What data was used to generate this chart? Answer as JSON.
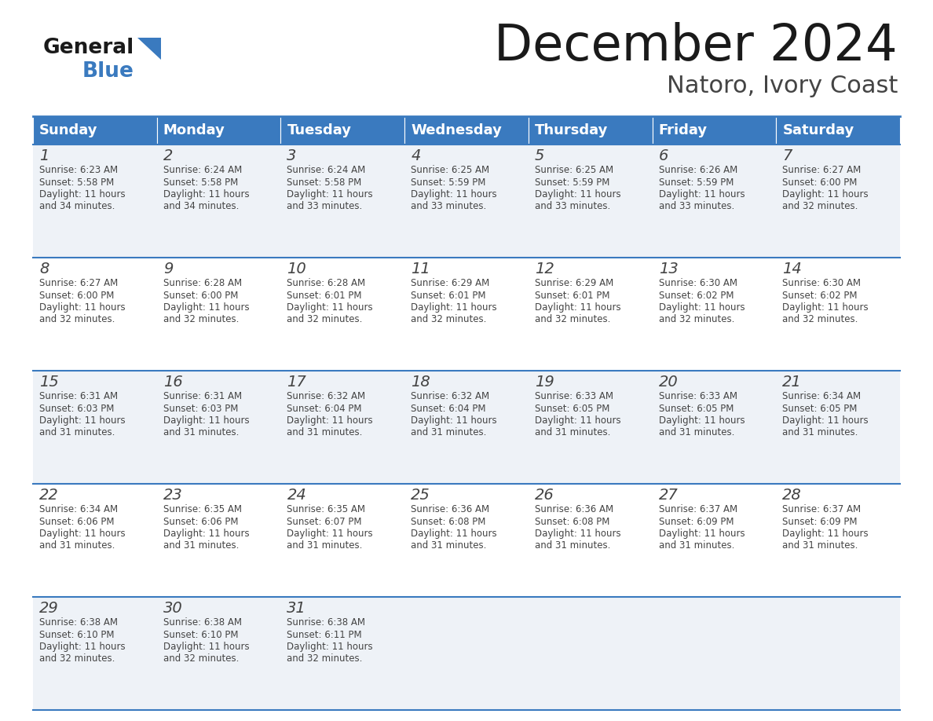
{
  "title": "December 2024",
  "subtitle": "Natoro, Ivory Coast",
  "header_color": "#3a7abf",
  "header_text_color": "#ffffff",
  "days_of_week": [
    "Sunday",
    "Monday",
    "Tuesday",
    "Wednesday",
    "Thursday",
    "Friday",
    "Saturday"
  ],
  "row_bg_colors": [
    "#eef2f7",
    "#ffffff"
  ],
  "cell_border_color": "#3a7abf",
  "day_number_color": "#444444",
  "info_text_color": "#444444",
  "title_color": "#1a1a1a",
  "subtitle_color": "#444444",
  "logo_general_color": "#1a1a1a",
  "logo_blue_color": "#3a7abf",
  "weeks": [
    [
      {
        "day": 1,
        "sunrise": "6:23 AM",
        "sunset": "5:58 PM",
        "daylight": "11 hours and 34 minutes."
      },
      {
        "day": 2,
        "sunrise": "6:24 AM",
        "sunset": "5:58 PM",
        "daylight": "11 hours and 34 minutes."
      },
      {
        "day": 3,
        "sunrise": "6:24 AM",
        "sunset": "5:58 PM",
        "daylight": "11 hours and 33 minutes."
      },
      {
        "day": 4,
        "sunrise": "6:25 AM",
        "sunset": "5:59 PM",
        "daylight": "11 hours and 33 minutes."
      },
      {
        "day": 5,
        "sunrise": "6:25 AM",
        "sunset": "5:59 PM",
        "daylight": "11 hours and 33 minutes."
      },
      {
        "day": 6,
        "sunrise": "6:26 AM",
        "sunset": "5:59 PM",
        "daylight": "11 hours and 33 minutes."
      },
      {
        "day": 7,
        "sunrise": "6:27 AM",
        "sunset": "6:00 PM",
        "daylight": "11 hours and 32 minutes."
      }
    ],
    [
      {
        "day": 8,
        "sunrise": "6:27 AM",
        "sunset": "6:00 PM",
        "daylight": "11 hours and 32 minutes."
      },
      {
        "day": 9,
        "sunrise": "6:28 AM",
        "sunset": "6:00 PM",
        "daylight": "11 hours and 32 minutes."
      },
      {
        "day": 10,
        "sunrise": "6:28 AM",
        "sunset": "6:01 PM",
        "daylight": "11 hours and 32 minutes."
      },
      {
        "day": 11,
        "sunrise": "6:29 AM",
        "sunset": "6:01 PM",
        "daylight": "11 hours and 32 minutes."
      },
      {
        "day": 12,
        "sunrise": "6:29 AM",
        "sunset": "6:01 PM",
        "daylight": "11 hours and 32 minutes."
      },
      {
        "day": 13,
        "sunrise": "6:30 AM",
        "sunset": "6:02 PM",
        "daylight": "11 hours and 32 minutes."
      },
      {
        "day": 14,
        "sunrise": "6:30 AM",
        "sunset": "6:02 PM",
        "daylight": "11 hours and 32 minutes."
      }
    ],
    [
      {
        "day": 15,
        "sunrise": "6:31 AM",
        "sunset": "6:03 PM",
        "daylight": "11 hours and 31 minutes."
      },
      {
        "day": 16,
        "sunrise": "6:31 AM",
        "sunset": "6:03 PM",
        "daylight": "11 hours and 31 minutes."
      },
      {
        "day": 17,
        "sunrise": "6:32 AM",
        "sunset": "6:04 PM",
        "daylight": "11 hours and 31 minutes."
      },
      {
        "day": 18,
        "sunrise": "6:32 AM",
        "sunset": "6:04 PM",
        "daylight": "11 hours and 31 minutes."
      },
      {
        "day": 19,
        "sunrise": "6:33 AM",
        "sunset": "6:05 PM",
        "daylight": "11 hours and 31 minutes."
      },
      {
        "day": 20,
        "sunrise": "6:33 AM",
        "sunset": "6:05 PM",
        "daylight": "11 hours and 31 minutes."
      },
      {
        "day": 21,
        "sunrise": "6:34 AM",
        "sunset": "6:05 PM",
        "daylight": "11 hours and 31 minutes."
      }
    ],
    [
      {
        "day": 22,
        "sunrise": "6:34 AM",
        "sunset": "6:06 PM",
        "daylight": "11 hours and 31 minutes."
      },
      {
        "day": 23,
        "sunrise": "6:35 AM",
        "sunset": "6:06 PM",
        "daylight": "11 hours and 31 minutes."
      },
      {
        "day": 24,
        "sunrise": "6:35 AM",
        "sunset": "6:07 PM",
        "daylight": "11 hours and 31 minutes."
      },
      {
        "day": 25,
        "sunrise": "6:36 AM",
        "sunset": "6:08 PM",
        "daylight": "11 hours and 31 minutes."
      },
      {
        "day": 26,
        "sunrise": "6:36 AM",
        "sunset": "6:08 PM",
        "daylight": "11 hours and 31 minutes."
      },
      {
        "day": 27,
        "sunrise": "6:37 AM",
        "sunset": "6:09 PM",
        "daylight": "11 hours and 31 minutes."
      },
      {
        "day": 28,
        "sunrise": "6:37 AM",
        "sunset": "6:09 PM",
        "daylight": "11 hours and 31 minutes."
      }
    ],
    [
      {
        "day": 29,
        "sunrise": "6:38 AM",
        "sunset": "6:10 PM",
        "daylight": "11 hours and 32 minutes."
      },
      {
        "day": 30,
        "sunrise": "6:38 AM",
        "sunset": "6:10 PM",
        "daylight": "11 hours and 32 minutes."
      },
      {
        "day": 31,
        "sunrise": "6:38 AM",
        "sunset": "6:11 PM",
        "daylight": "11 hours and 32 minutes."
      },
      null,
      null,
      null,
      null
    ]
  ]
}
